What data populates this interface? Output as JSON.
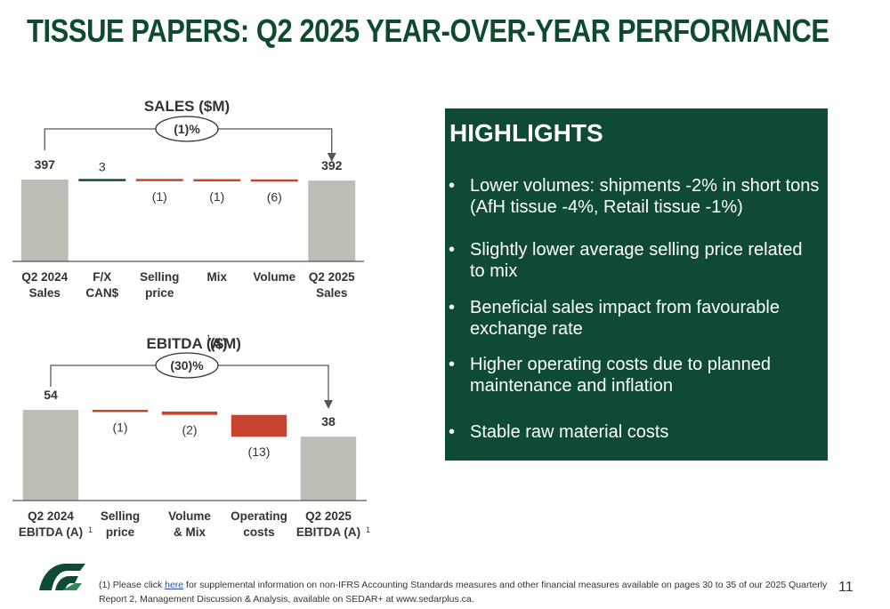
{
  "title": "TISSUE PAPERS: Q2 2025 YEAR-OVER-YEAR PERFORMANCE",
  "chart_data": [
    {
      "type": "bar",
      "title": "SALES ($M)",
      "change_label": "(1)%",
      "categories": [
        "Q2 2024 Sales",
        "F/X CAN$",
        "Selling price",
        "Mix",
        "Volume",
        "Q2 2025 Sales"
      ],
      "category_lines": [
        [
          "Q2 2024",
          "Sales"
        ],
        [
          "F/X",
          "CAN$"
        ],
        [
          "Selling",
          "price"
        ],
        [
          "Mix"
        ],
        [
          "Volume"
        ],
        [
          "Q2 2025",
          "Sales"
        ]
      ],
      "values": [
        397,
        3,
        -1,
        -1,
        -6,
        392
      ],
      "value_labels": [
        "397",
        "3",
        "(1)",
        "(1)",
        "(6)",
        "392"
      ],
      "kinds": [
        "total",
        "delta",
        "delta",
        "delta",
        "delta",
        "total"
      ]
    },
    {
      "type": "bar",
      "title": "EBITDA (A)",
      "title_sup": "1",
      "title_suffix": "($M)",
      "change_label": "(30)%",
      "categories": [
        "Q2 2024 EBITDA (A)",
        "Selling price",
        "Volume & Mix",
        "Operating costs",
        "Q2 2025 EBITDA (A)"
      ],
      "category_lines": [
        [
          "Q2 2024",
          "EBITDA (A)"
        ],
        [
          "Selling",
          "price"
        ],
        [
          "Volume",
          "& Mix"
        ],
        [
          "Operating",
          "costs"
        ],
        [
          "Q2 2025",
          "EBITDA (A)"
        ]
      ],
      "category_sups": [
        "1",
        "",
        "",
        "",
        "1"
      ],
      "values": [
        54,
        -1,
        -2,
        -13,
        38
      ],
      "value_labels": [
        "54",
        "(1)",
        "(2)",
        "(13)",
        "38"
      ],
      "kinds": [
        "total",
        "delta",
        "delta",
        "delta",
        "total"
      ]
    }
  ],
  "colors": {
    "total": "#bdbdb5",
    "increase": "#0e4a36",
    "decrease": "#c8432d",
    "title": "#0d4a2e",
    "panel": "#0e4a36"
  },
  "highlights": {
    "title": "HIGHLIGHTS",
    "items": [
      "Lower volumes: shipments -2% in short tons (AfH tissue -4%, Retail tissue -1%)",
      "Slightly lower average selling price related to mix",
      "Beneficial sales impact from favourable exchange rate",
      "Higher operating costs due to planned maintenance and inflation",
      "Stable raw material costs"
    ]
  },
  "footnote": {
    "prefix": "(1) Please click ",
    "link": "here",
    "suffix": " for supplemental information on non-IFRS Accounting Standards measures and other financial measures available on pages 30 to 35 of our 2025 Quarterly Report 2, Management Discussion & Analysis, available on SEDAR+ at www.sedarplus.ca."
  },
  "page_number": "11"
}
